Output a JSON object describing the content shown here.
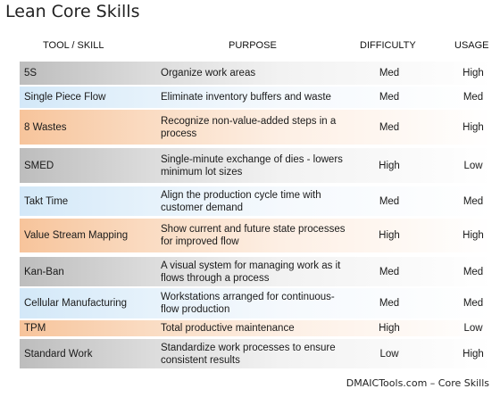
{
  "title": "Lean Core Skills",
  "headers": {
    "tool": "TOOL / SKILL",
    "purpose": "PURPOSE",
    "difficulty": "DIFFICULTY",
    "usage": "USAGE"
  },
  "rows": [
    {
      "tool": "5S",
      "purpose": "Organize work areas",
      "difficulty": "Med",
      "usage": "High",
      "shade": "gray"
    },
    {
      "tool": "Single Piece Flow",
      "purpose": "Eliminate inventory buffers and waste",
      "difficulty": "Med",
      "usage": "Med",
      "shade": "blue"
    },
    {
      "tool": "8 Wastes",
      "purpose": "Recognize non-value-added steps in a process",
      "difficulty": "Med",
      "usage": "High",
      "shade": "orange"
    },
    {
      "tool": "SMED",
      "purpose": "Single-minute exchange of dies - lowers minimum lot sizes",
      "difficulty": "High",
      "usage": "Low",
      "shade": "gray"
    },
    {
      "tool": "Takt Time",
      "purpose": "Align the production cycle time with customer demand",
      "difficulty": "Med",
      "usage": "Med",
      "shade": "blue"
    },
    {
      "tool": "Value Stream Mapping",
      "purpose": "Show current and future state processes for improved flow",
      "difficulty": "High",
      "usage": "High",
      "shade": "orange"
    },
    {
      "tool": "Kan-Ban",
      "purpose": "A visual system for managing work as it flows through a process",
      "difficulty": "Med",
      "usage": "Med",
      "shade": "gray"
    },
    {
      "tool": "Cellular Manufacturing",
      "purpose": "Workstations arranged for continuous-flow production",
      "difficulty": "Med",
      "usage": "Med",
      "shade": "blue"
    },
    {
      "tool": "TPM",
      "purpose": "Total productive maintenance",
      "difficulty": "High",
      "usage": "Low",
      "shade": "orange"
    },
    {
      "tool": "Standard Work",
      "purpose": "Standardize work processes to ensure consistent results",
      "difficulty": "Low",
      "usage": "High",
      "shade": "gray"
    }
  ],
  "footer": "DMAICTools.com – Core Skills"
}
